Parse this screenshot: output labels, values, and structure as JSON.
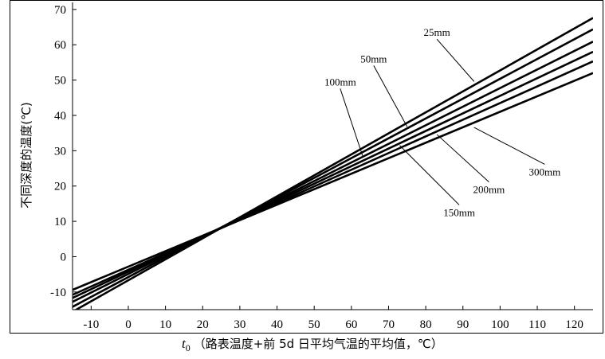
{
  "chart_data": {
    "type": "line",
    "title": "",
    "xlabel": {
      "symbol": "t",
      "subscript": "0",
      "text": "（路表温度+前 5d 日平均气温的平均值，℃）"
    },
    "ylabel": "不同深度的温度(℃)",
    "xlim": [
      -15,
      125
    ],
    "ylim": [
      -15,
      72
    ],
    "xticks": [
      -10,
      0,
      10,
      20,
      30,
      40,
      50,
      60,
      70,
      80,
      90,
      100,
      110,
      120
    ],
    "yticks": [
      -10,
      0,
      10,
      20,
      30,
      40,
      50,
      60,
      70
    ],
    "grid": false,
    "colors": {
      "line": "#000000",
      "axis": "#000000",
      "background": "#ffffff"
    },
    "series": [
      {
        "name": "25mm",
        "x": [
          -15,
          125
        ],
        "y": [
          -15.6,
          67.6
        ]
      },
      {
        "name": "50mm",
        "x": [
          -15,
          125
        ],
        "y": [
          -14.2,
          64.4
        ]
      },
      {
        "name": "100mm",
        "x": [
          -15,
          125
        ],
        "y": [
          -12.8,
          60.9
        ]
      },
      {
        "name": "150mm",
        "x": [
          -15,
          125
        ],
        "y": [
          -11.7,
          58.0
        ]
      },
      {
        "name": "200mm",
        "x": [
          -15,
          125
        ],
        "y": [
          -10.8,
          55.3
        ]
      },
      {
        "name": "300mm",
        "x": [
          -15,
          125
        ],
        "y": [
          -9.4,
          52.0
        ]
      }
    ],
    "annotations": [
      {
        "series": "25mm",
        "text": "25mm",
        "point": [
          93,
          49.6
        ],
        "label_at": [
          83,
          62.5
        ]
      },
      {
        "series": "50mm",
        "text": "50mm",
        "point": [
          75,
          36.8
        ],
        "label_at": [
          66,
          55
        ]
      },
      {
        "series": "100mm",
        "text": "100mm",
        "point": [
          63,
          28.6
        ],
        "label_at": [
          57,
          48.5
        ]
      },
      {
        "series": "150mm",
        "text": "150mm",
        "point": [
          73,
          31.5
        ],
        "label_at": [
          89,
          11.5
        ]
      },
      {
        "series": "200mm",
        "text": "200mm",
        "point": [
          83,
          34.6
        ],
        "label_at": [
          97,
          18
        ]
      },
      {
        "series": "300mm",
        "text": "300mm",
        "point": [
          93,
          36.6
        ],
        "label_at": [
          112,
          23
        ]
      }
    ]
  }
}
